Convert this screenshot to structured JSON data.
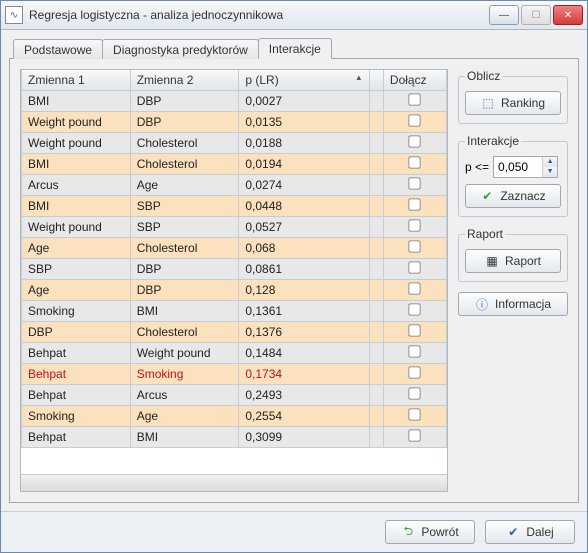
{
  "window": {
    "title": "Regresja logistyczna - analiza jednoczynnikowa"
  },
  "tabs": {
    "t0": "Podstawowe",
    "t1": "Diagnostyka predyktorów",
    "t2": "Interakcje",
    "activeIndex": 2
  },
  "columns": {
    "c0": "Zmienna 1",
    "c1": "Zmienna 2",
    "c2": "p (LR)",
    "c3": "Dołącz"
  },
  "rows": [
    {
      "v1": "BMI",
      "v2": "DBP",
      "p": "0,0027",
      "hl": false
    },
    {
      "v1": "Weight pound",
      "v2": "DBP",
      "p": "0,0135",
      "hl": false
    },
    {
      "v1": "Weight pound",
      "v2": "Cholesterol",
      "p": "0,0188",
      "hl": false
    },
    {
      "v1": "BMI",
      "v2": "Cholesterol",
      "p": "0,0194",
      "hl": false
    },
    {
      "v1": "Arcus",
      "v2": "Age",
      "p": "0,0274",
      "hl": false
    },
    {
      "v1": "BMI",
      "v2": "SBP",
      "p": "0,0448",
      "hl": false
    },
    {
      "v1": "Weight pound",
      "v2": "SBP",
      "p": "0,0527",
      "hl": false
    },
    {
      "v1": "Age",
      "v2": "Cholesterol",
      "p": "0,068",
      "hl": false
    },
    {
      "v1": "SBP",
      "v2": "DBP",
      "p": "0,0861",
      "hl": false
    },
    {
      "v1": "Age",
      "v2": "DBP",
      "p": "0,128",
      "hl": false
    },
    {
      "v1": "Smoking",
      "v2": "BMI",
      "p": "0,1361",
      "hl": false
    },
    {
      "v1": "DBP",
      "v2": "Cholesterol",
      "p": "0,1376",
      "hl": false
    },
    {
      "v1": "Behpat",
      "v2": "Weight pound",
      "p": "0,1484",
      "hl": false
    },
    {
      "v1": "Behpat",
      "v2": "Smoking",
      "p": "0,1734",
      "hl": true
    },
    {
      "v1": "Behpat",
      "v2": "Arcus",
      "p": "0,2493",
      "hl": false
    },
    {
      "v1": "Smoking",
      "v2": "Age",
      "p": "0,2554",
      "hl": false
    },
    {
      "v1": "Behpat",
      "v2": "BMI",
      "p": "0,3099",
      "hl": false
    }
  ],
  "side": {
    "oblicz": {
      "legend": "Oblicz",
      "ranking": "Ranking"
    },
    "interakcje": {
      "legend": "Interakcje",
      "p_label": "p <=",
      "p_value": "0,050",
      "zaznacz": "Zaznacz"
    },
    "raport": {
      "legend": "Raport",
      "raport": "Raport"
    },
    "info": "Informacja"
  },
  "footer": {
    "back": "Powrót",
    "next": "Dalej"
  },
  "colors": {
    "row_even": "#e8e8e8",
    "row_odd": "#fbe1bd",
    "highlight_text": "#c01515",
    "header_grad_top": "#f8f8f8",
    "header_grad_bot": "#e2e6ea",
    "border": "#c5ccd3"
  }
}
